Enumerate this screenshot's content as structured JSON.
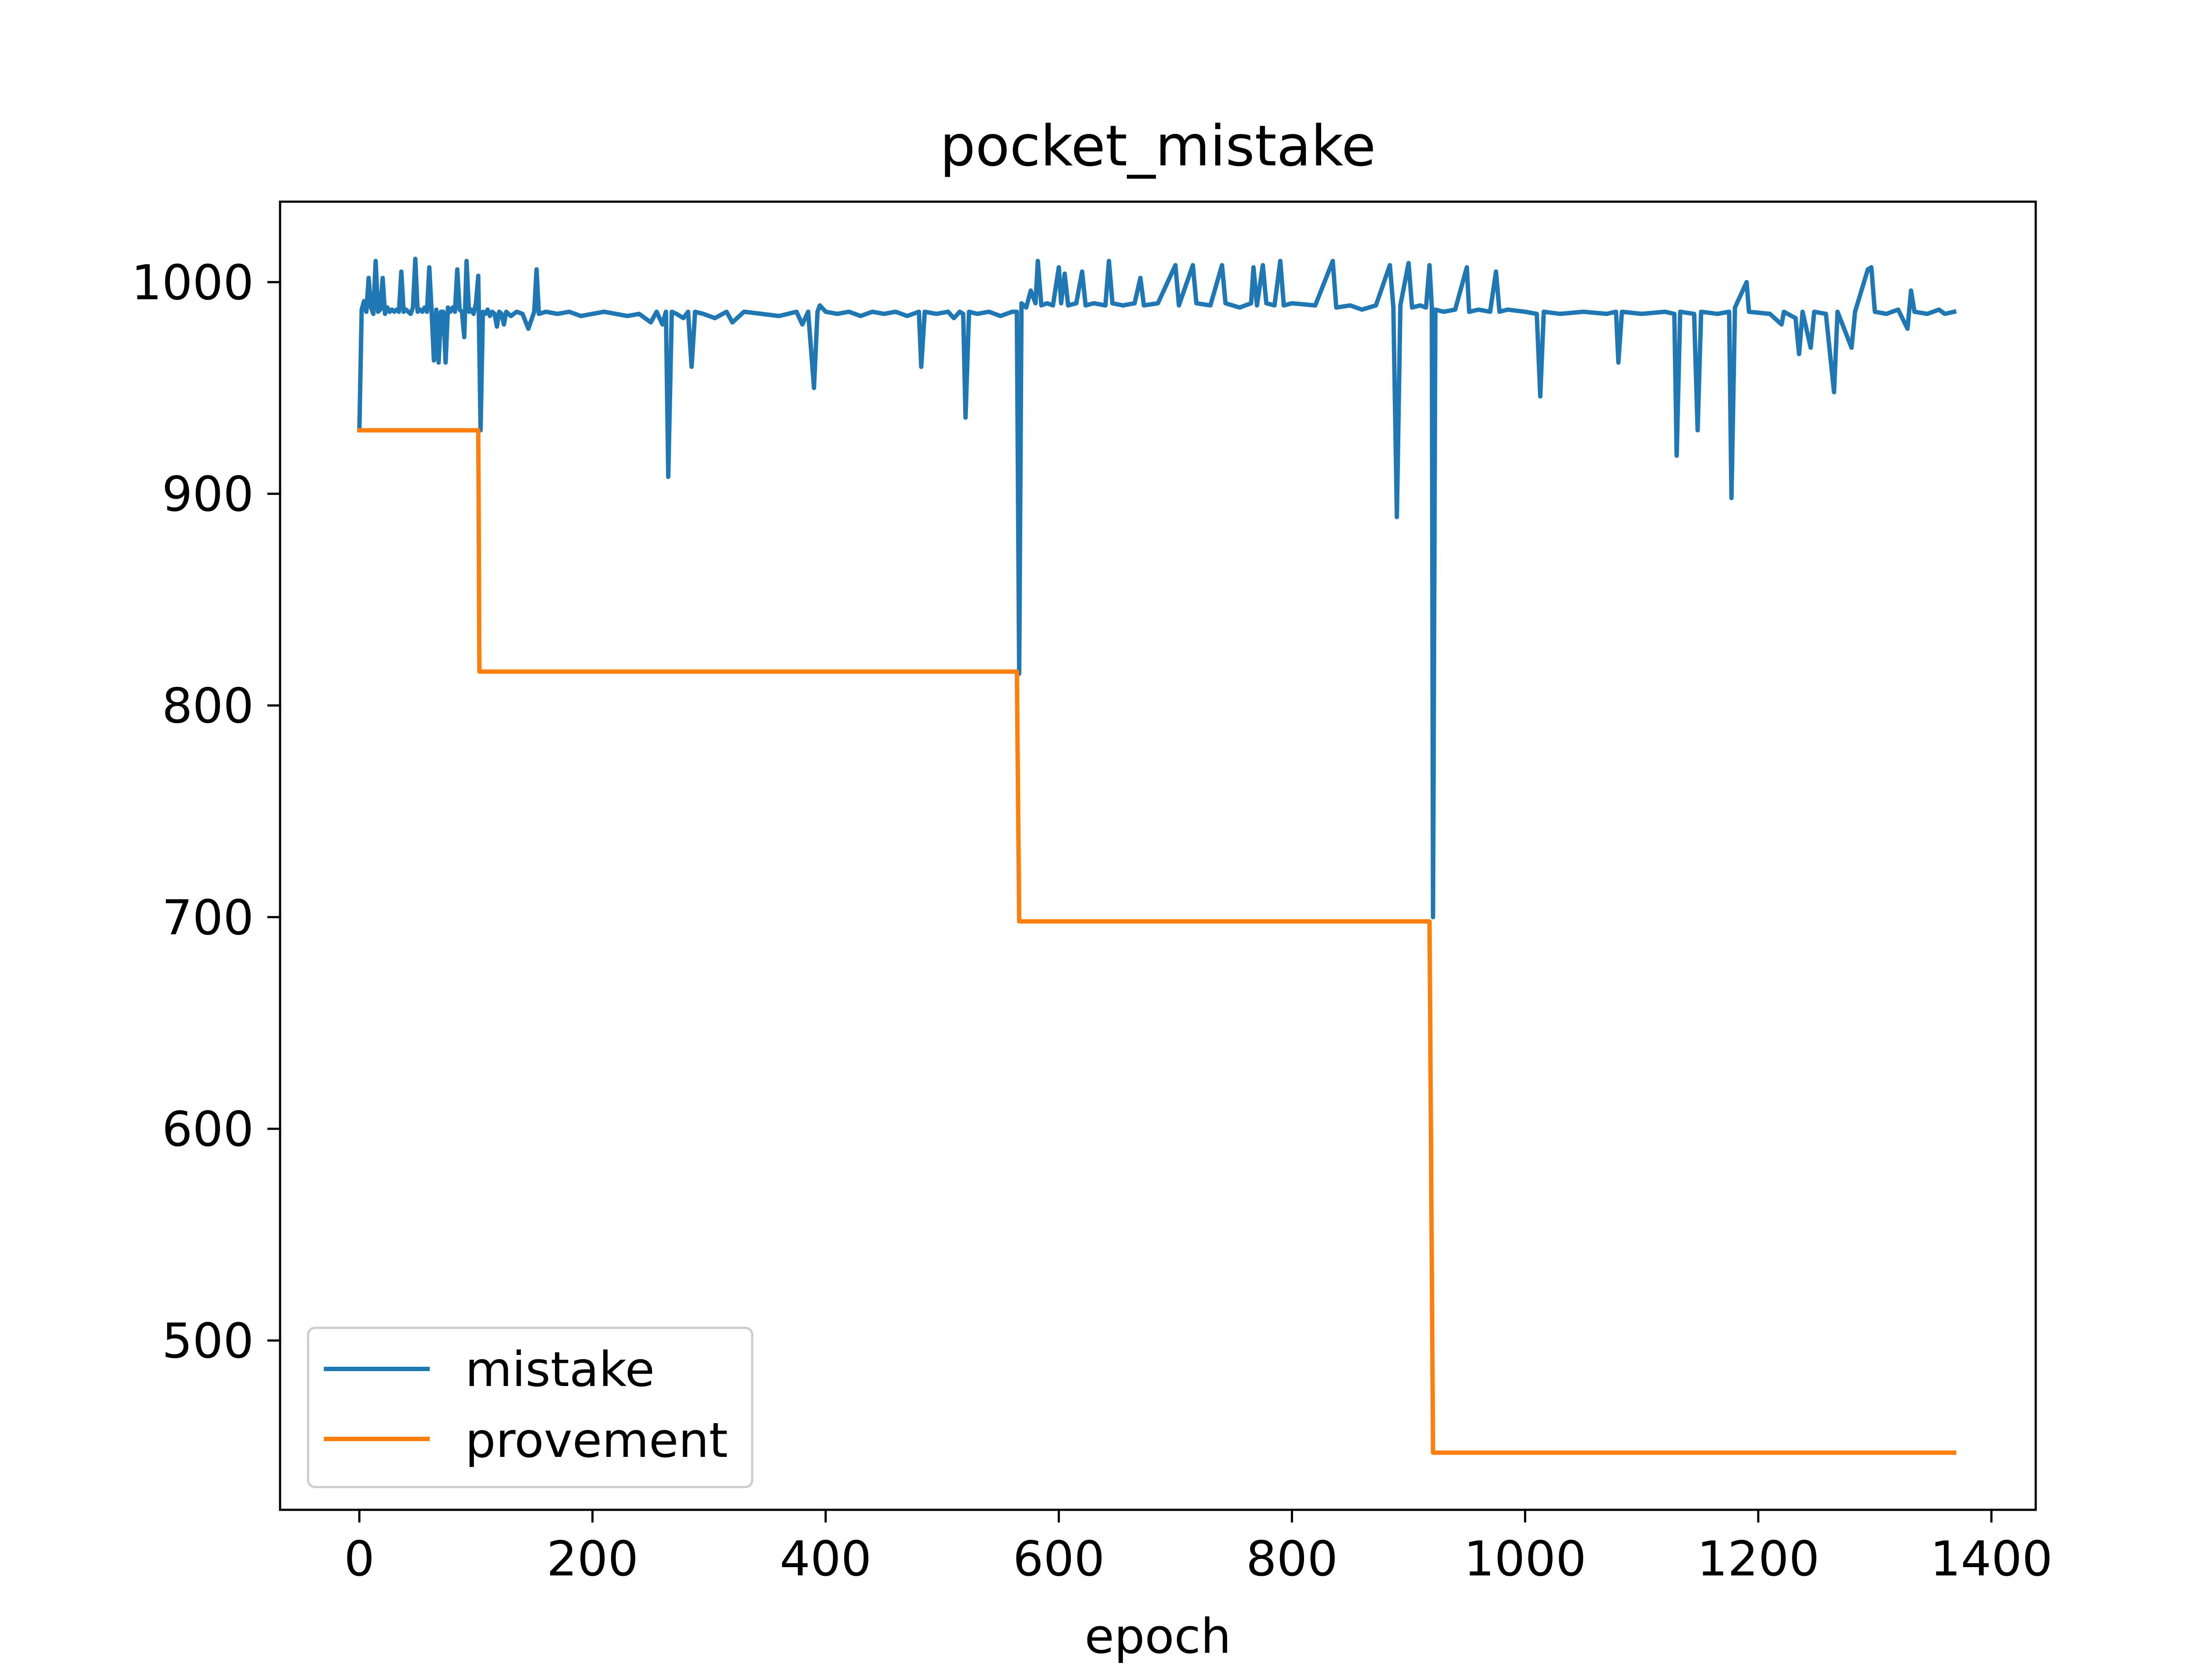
{
  "chart_data": {
    "type": "line",
    "title": "pocket_mistake",
    "xlabel": "epoch",
    "ylabel": "",
    "xlim": [
      -68,
      1438
    ],
    "ylim": [
      420,
      1038
    ],
    "xticks": [
      0,
      200,
      400,
      600,
      800,
      1000,
      1200,
      1400
    ],
    "yticks": [
      500,
      600,
      700,
      800,
      900,
      1000
    ],
    "grid": false,
    "legend_position": "lower-left",
    "series": [
      {
        "name": "mistake",
        "color": "#1f77b4",
        "points": [
          [
            0,
            930
          ],
          [
            2,
            987
          ],
          [
            4,
            991
          ],
          [
            6,
            986
          ],
          [
            8,
            1002
          ],
          [
            10,
            988
          ],
          [
            12,
            985
          ],
          [
            14,
            1010
          ],
          [
            16,
            986
          ],
          [
            18,
            987
          ],
          [
            20,
            1002
          ],
          [
            22,
            985
          ],
          [
            24,
            988
          ],
          [
            26,
            986
          ],
          [
            28,
            987
          ],
          [
            30,
            986
          ],
          [
            32,
            987
          ],
          [
            34,
            986
          ],
          [
            36,
            1005
          ],
          [
            38,
            986
          ],
          [
            40,
            987
          ],
          [
            42,
            986
          ],
          [
            44,
            985
          ],
          [
            46,
            988
          ],
          [
            48,
            1011
          ],
          [
            50,
            986
          ],
          [
            52,
            987
          ],
          [
            54,
            986
          ],
          [
            56,
            988
          ],
          [
            58,
            986
          ],
          [
            60,
            1007
          ],
          [
            62,
            986
          ],
          [
            64,
            963
          ],
          [
            66,
            987
          ],
          [
            68,
            962
          ],
          [
            70,
            986
          ],
          [
            72,
            986
          ],
          [
            74,
            962
          ],
          [
            76,
            988
          ],
          [
            78,
            986
          ],
          [
            80,
            988
          ],
          [
            82,
            986
          ],
          [
            84,
            1006
          ],
          [
            86,
            987
          ],
          [
            88,
            986
          ],
          [
            90,
            974
          ],
          [
            92,
            1010
          ],
          [
            94,
            986
          ],
          [
            96,
            987
          ],
          [
            98,
            985
          ],
          [
            100,
            990
          ],
          [
            102,
            1003
          ],
          [
            104,
            930
          ],
          [
            106,
            986
          ],
          [
            108,
            985
          ],
          [
            110,
            987
          ],
          [
            112,
            984
          ],
          [
            114,
            986
          ],
          [
            116,
            985
          ],
          [
            118,
            979
          ],
          [
            120,
            986
          ],
          [
            122,
            985
          ],
          [
            124,
            980
          ],
          [
            126,
            986
          ],
          [
            128,
            985
          ],
          [
            130,
            984
          ],
          [
            135,
            986
          ],
          [
            140,
            985
          ],
          [
            145,
            978
          ],
          [
            150,
            986
          ],
          [
            152,
            1006
          ],
          [
            154,
            985
          ],
          [
            160,
            986
          ],
          [
            170,
            985
          ],
          [
            180,
            986
          ],
          [
            190,
            984
          ],
          [
            200,
            985
          ],
          [
            210,
            986
          ],
          [
            220,
            985
          ],
          [
            230,
            984
          ],
          [
            240,
            985
          ],
          [
            250,
            981
          ],
          [
            255,
            986
          ],
          [
            260,
            980
          ],
          [
            263,
            986
          ],
          [
            265,
            908
          ],
          [
            268,
            986
          ],
          [
            272,
            985
          ],
          [
            278,
            983
          ],
          [
            282,
            986
          ],
          [
            285,
            960
          ],
          [
            288,
            986
          ],
          [
            295,
            985
          ],
          [
            305,
            983
          ],
          [
            315,
            986
          ],
          [
            320,
            981
          ],
          [
            330,
            986
          ],
          [
            345,
            985
          ],
          [
            360,
            984
          ],
          [
            375,
            986
          ],
          [
            380,
            980
          ],
          [
            385,
            986
          ],
          [
            390,
            950
          ],
          [
            393,
            986
          ],
          [
            395,
            989
          ],
          [
            400,
            986
          ],
          [
            410,
            985
          ],
          [
            420,
            986
          ],
          [
            430,
            984
          ],
          [
            440,
            986
          ],
          [
            450,
            985
          ],
          [
            460,
            986
          ],
          [
            470,
            984
          ],
          [
            480,
            986
          ],
          [
            482,
            960
          ],
          [
            485,
            986
          ],
          [
            495,
            985
          ],
          [
            505,
            986
          ],
          [
            510,
            983
          ],
          [
            515,
            986
          ],
          [
            518,
            985
          ],
          [
            520,
            936
          ],
          [
            523,
            986
          ],
          [
            530,
            985
          ],
          [
            540,
            986
          ],
          [
            550,
            984
          ],
          [
            560,
            986
          ],
          [
            564,
            986
          ],
          [
            566,
            815
          ],
          [
            568,
            990
          ],
          [
            572,
            988
          ],
          [
            576,
            996
          ],
          [
            580,
            990
          ],
          [
            582,
            1010
          ],
          [
            585,
            989
          ],
          [
            590,
            990
          ],
          [
            595,
            989
          ],
          [
            600,
            1007
          ],
          [
            602,
            990
          ],
          [
            605,
            1004
          ],
          [
            608,
            989
          ],
          [
            615,
            990
          ],
          [
            620,
            1005
          ],
          [
            623,
            989
          ],
          [
            630,
            990
          ],
          [
            640,
            989
          ],
          [
            643,
            1010
          ],
          [
            646,
            990
          ],
          [
            655,
            989
          ],
          [
            665,
            990
          ],
          [
            670,
            1002
          ],
          [
            673,
            989
          ],
          [
            685,
            990
          ],
          [
            700,
            1008
          ],
          [
            703,
            989
          ],
          [
            715,
            1008
          ],
          [
            718,
            990
          ],
          [
            730,
            989
          ],
          [
            740,
            1008
          ],
          [
            743,
            990
          ],
          [
            755,
            988
          ],
          [
            765,
            990
          ],
          [
            767,
            1007
          ],
          [
            770,
            989
          ],
          [
            775,
            1008
          ],
          [
            778,
            990
          ],
          [
            785,
            989
          ],
          [
            790,
            1010
          ],
          [
            793,
            989
          ],
          [
            800,
            990
          ],
          [
            820,
            989
          ],
          [
            835,
            1010
          ],
          [
            838,
            988
          ],
          [
            850,
            989
          ],
          [
            860,
            987
          ],
          [
            872,
            989
          ],
          [
            884,
            1008
          ],
          [
            887,
            988
          ],
          [
            890,
            889
          ],
          [
            893,
            989
          ],
          [
            900,
            1009
          ],
          [
            903,
            988
          ],
          [
            910,
            989
          ],
          [
            915,
            988
          ],
          [
            918,
            1008
          ],
          [
            920,
            988
          ],
          [
            921,
            700
          ],
          [
            923,
            987
          ],
          [
            930,
            986
          ],
          [
            940,
            987
          ],
          [
            950,
            1007
          ],
          [
            952,
            986
          ],
          [
            960,
            987
          ],
          [
            970,
            986
          ],
          [
            975,
            1005
          ],
          [
            978,
            986
          ],
          [
            985,
            987
          ],
          [
            1000,
            986
          ],
          [
            1010,
            985
          ],
          [
            1013,
            946
          ],
          [
            1016,
            986
          ],
          [
            1030,
            985
          ],
          [
            1050,
            986
          ],
          [
            1070,
            985
          ],
          [
            1078,
            986
          ],
          [
            1080,
            962
          ],
          [
            1083,
            986
          ],
          [
            1100,
            985
          ],
          [
            1120,
            986
          ],
          [
            1128,
            985
          ],
          [
            1130,
            918
          ],
          [
            1133,
            986
          ],
          [
            1145,
            985
          ],
          [
            1148,
            930
          ],
          [
            1151,
            986
          ],
          [
            1165,
            985
          ],
          [
            1175,
            986
          ],
          [
            1177,
            898
          ],
          [
            1180,
            988
          ],
          [
            1190,
            1000
          ],
          [
            1192,
            986
          ],
          [
            1210,
            985
          ],
          [
            1220,
            980
          ],
          [
            1222,
            986
          ],
          [
            1232,
            983
          ],
          [
            1235,
            966
          ],
          [
            1238,
            986
          ],
          [
            1245,
            969
          ],
          [
            1248,
            986
          ],
          [
            1258,
            985
          ],
          [
            1265,
            948
          ],
          [
            1268,
            986
          ],
          [
            1280,
            969
          ],
          [
            1283,
            986
          ],
          [
            1294,
            1006
          ],
          [
            1297,
            1007
          ],
          [
            1300,
            986
          ],
          [
            1310,
            985
          ],
          [
            1320,
            987
          ],
          [
            1328,
            978
          ],
          [
            1331,
            996
          ],
          [
            1334,
            986
          ],
          [
            1345,
            985
          ],
          [
            1355,
            987
          ],
          [
            1360,
            985
          ],
          [
            1368,
            986
          ]
        ]
      },
      {
        "name": "provement",
        "color": "#ff7f0e",
        "points": [
          [
            0,
            930
          ],
          [
            102,
            930
          ],
          [
            103,
            816
          ],
          [
            564,
            816
          ],
          [
            566,
            698
          ],
          [
            918,
            698
          ],
          [
            921,
            447
          ],
          [
            1368,
            447
          ]
        ]
      }
    ]
  }
}
